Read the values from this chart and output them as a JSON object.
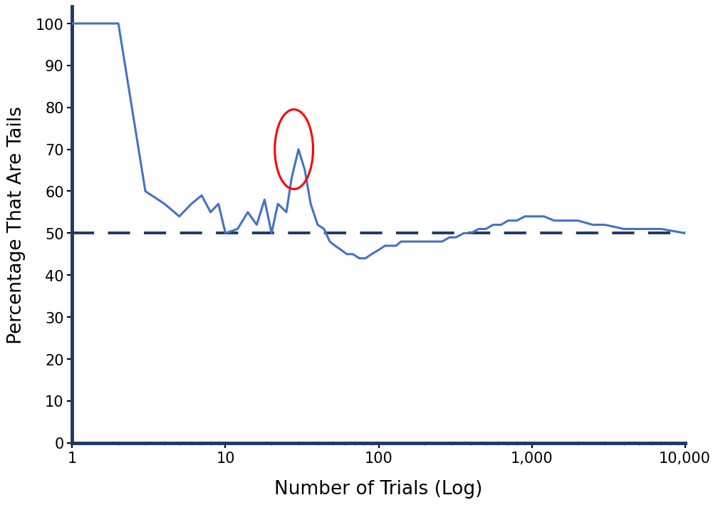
{
  "title": "",
  "xlabel": "Number of Trials (Log)",
  "ylabel": "Percentage That Are Tails",
  "xlim_log": [
    1,
    10000
  ],
  "ylim": [
    0,
    104
  ],
  "yticks": [
    0,
    10,
    20,
    30,
    40,
    50,
    60,
    70,
    80,
    90,
    100
  ],
  "xticks": [
    1,
    10,
    100,
    1000,
    10000
  ],
  "xticklabels": [
    "1",
    "10",
    "100",
    "1,000",
    "10,000"
  ],
  "dashed_y": 50,
  "line_color": "#4472C4",
  "dashed_color": "#1F3864",
  "axis_color": "#1F3864",
  "circle_color": "red",
  "background_color": "#ffffff",
  "x_data": [
    1,
    2,
    3,
    4,
    5,
    6,
    7,
    8,
    9,
    10,
    12,
    14,
    16,
    18,
    20,
    22,
    25,
    27,
    30,
    33,
    36,
    40,
    44,
    48,
    52,
    57,
    62,
    68,
    75,
    82,
    90,
    100,
    110,
    120,
    130,
    140,
    155,
    170,
    190,
    210,
    235,
    260,
    290,
    320,
    360,
    400,
    450,
    500,
    560,
    630,
    700,
    800,
    900,
    1000,
    1200,
    1400,
    1700,
    2000,
    2500,
    3000,
    4000,
    5000,
    7000,
    10000
  ],
  "y_data": [
    100,
    100,
    60,
    57,
    54,
    57,
    59,
    55,
    57,
    50,
    51,
    55,
    52,
    58,
    50,
    57,
    55,
    63,
    70,
    65,
    57,
    52,
    51,
    48,
    47,
    46,
    45,
    45,
    44,
    44,
    45,
    46,
    47,
    47,
    47,
    48,
    48,
    48,
    48,
    48,
    48,
    48,
    49,
    49,
    50,
    50,
    51,
    51,
    52,
    52,
    53,
    53,
    54,
    54,
    54,
    53,
    53,
    53,
    52,
    52,
    51,
    51,
    51,
    50
  ]
}
